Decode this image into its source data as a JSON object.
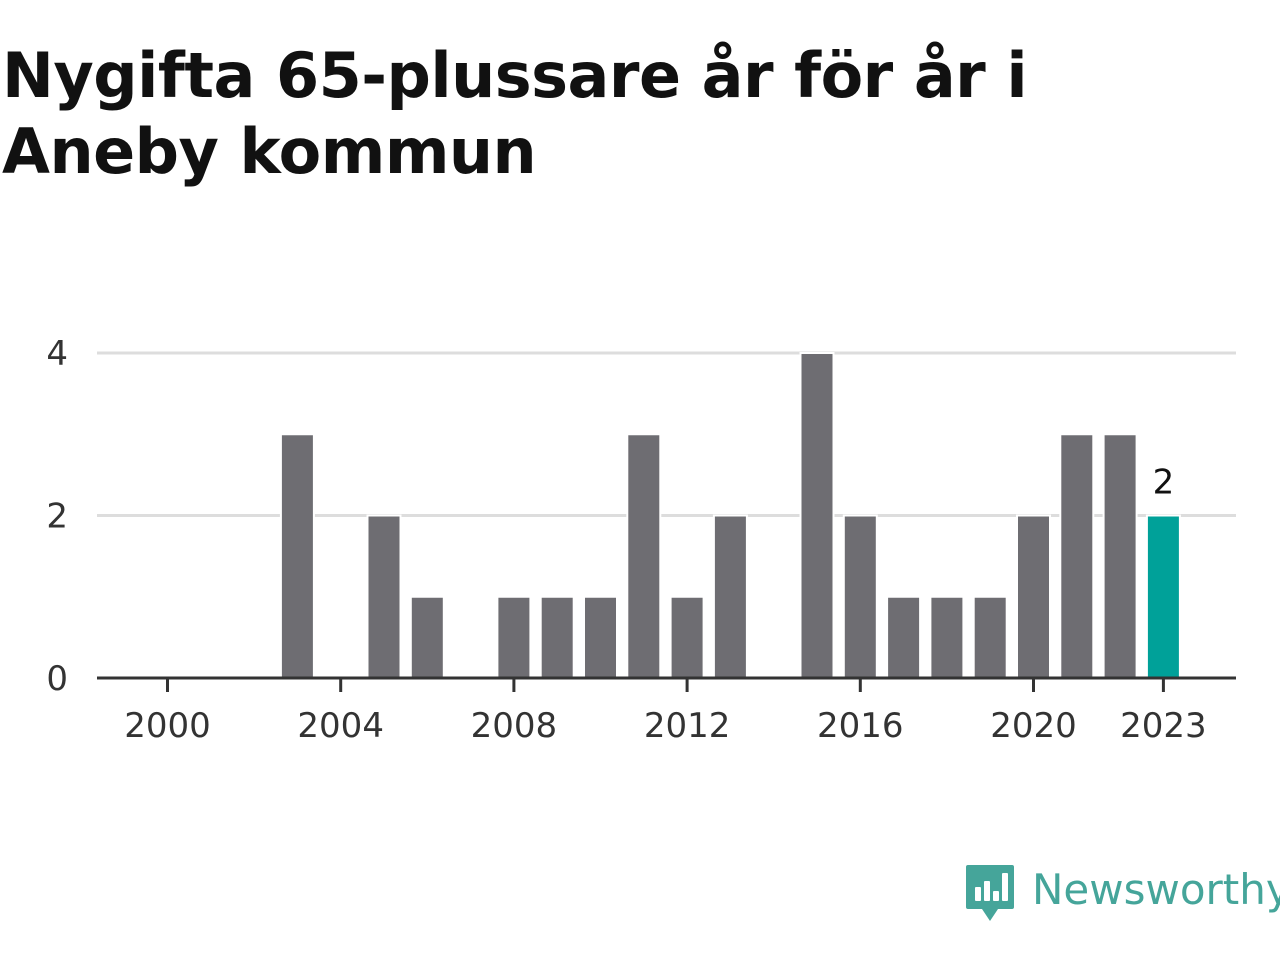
{
  "title": "Nygifta 65-plussare år för år i Aneby kommun",
  "brand": {
    "name": "Newsworthy",
    "icon": "newsworthy-logo-icon",
    "color": "#45a59a"
  },
  "chart_data": {
    "type": "bar",
    "title": "Nygifta 65-plussare år för år i Aneby kommun",
    "xlabel": "",
    "ylabel": "",
    "categories": [
      "2000",
      "2001",
      "2002",
      "2003",
      "2004",
      "2005",
      "2006",
      "2007",
      "2008",
      "2009",
      "2010",
      "2011",
      "2012",
      "2013",
      "2014",
      "2015",
      "2016",
      "2017",
      "2018",
      "2019",
      "2020",
      "2021",
      "2022",
      "2023"
    ],
    "values": [
      0,
      0,
      0,
      3,
      0,
      2,
      1,
      0,
      1,
      1,
      1,
      3,
      1,
      2,
      0,
      4,
      2,
      1,
      1,
      1,
      2,
      3,
      3,
      2
    ],
    "ylim": [
      0,
      4
    ],
    "yticks": [
      0,
      2,
      4
    ],
    "xticks": [
      "2000",
      "2004",
      "2008",
      "2012",
      "2016",
      "2020",
      "2023"
    ],
    "grid": true,
    "legend": "none",
    "highlight": {
      "category": "2023",
      "label": "2"
    },
    "colors": {
      "bar": "#6e6d72",
      "highlight": "#00a199",
      "grid": "#dddddd",
      "axis": "#333333"
    }
  }
}
